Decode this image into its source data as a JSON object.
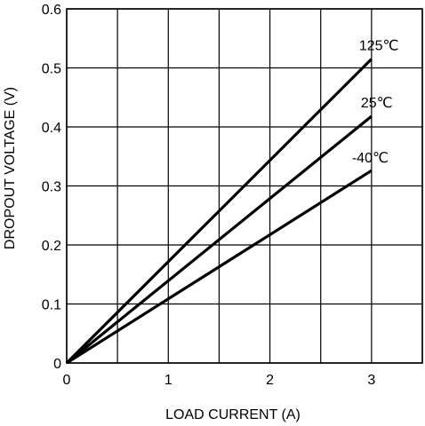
{
  "chart_data": {
    "type": "line",
    "title": "",
    "xlabel": "LOAD CURRENT (A)",
    "ylabel": "DROPOUT VOLTAGE (V)",
    "xlim": [
      0,
      3.5
    ],
    "ylim": [
      0,
      0.6
    ],
    "x_ticks": [
      0,
      0.5,
      1,
      1.5,
      2,
      2.5,
      3,
      3.5
    ],
    "x_tick_labels": [
      "0",
      "",
      "1",
      "",
      "2",
      "",
      "3",
      ""
    ],
    "y_ticks": [
      0,
      0.1,
      0.2,
      0.3,
      0.4,
      0.5,
      0.6
    ],
    "y_tick_labels": [
      "0",
      "0.1",
      "0.2",
      "0.3",
      "0.4",
      "0.5",
      "0.6"
    ],
    "grid": true,
    "legend": "none (series labelled at line ends)",
    "series": [
      {
        "name": "125℃",
        "x": [
          0,
          3
        ],
        "y": [
          0,
          0.515
        ]
      },
      {
        "name": "25℃",
        "x": [
          0,
          3
        ],
        "y": [
          0,
          0.418
        ]
      },
      {
        "name": "-40℃",
        "x": [
          0,
          3
        ],
        "y": [
          0,
          0.326
        ]
      }
    ]
  }
}
